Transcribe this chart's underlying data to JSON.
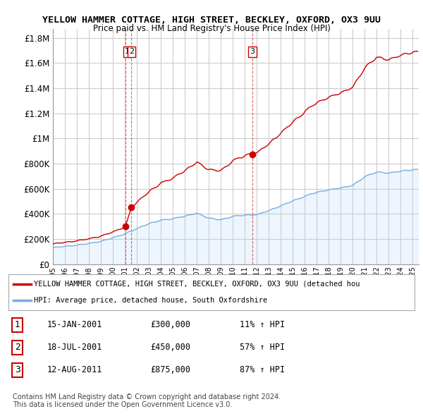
{
  "title": "YELLOW HAMMER COTTAGE, HIGH STREET, BECKLEY, OXFORD, OX3 9UU",
  "subtitle": "Price paid vs. HM Land Registry's House Price Index (HPI)",
  "ytick_values": [
    0,
    200000,
    400000,
    600000,
    800000,
    1000000,
    1200000,
    1400000,
    1600000,
    1800000
  ],
  "ylim": [
    0,
    1870000
  ],
  "xlim_start": 1995.0,
  "xlim_end": 2025.5,
  "transactions": [
    {
      "num": 1,
      "date": "15-JAN-2001",
      "price": 300000,
      "pct": "11%",
      "x": 2001.04
    },
    {
      "num": 2,
      "date": "18-JUL-2001",
      "price": 450000,
      "pct": "57%",
      "x": 2001.54
    },
    {
      "num": 3,
      "date": "12-AUG-2011",
      "price": 875000,
      "pct": "87%",
      "x": 2011.62
    }
  ],
  "legend_property": "YELLOW HAMMER COTTAGE, HIGH STREET, BECKLEY, OXFORD, OX3 9UU (detached hou",
  "legend_hpi": "HPI: Average price, detached house, South Oxfordshire",
  "footnote1": "Contains HM Land Registry data © Crown copyright and database right 2024.",
  "footnote2": "This data is licensed under the Open Government Licence v3.0.",
  "red_color": "#cc0000",
  "blue_color": "#7aade0",
  "blue_fill_color": "#ddeeff",
  "dashed_color": "#cc0000",
  "background_color": "#ffffff",
  "grid_color": "#cccccc"
}
